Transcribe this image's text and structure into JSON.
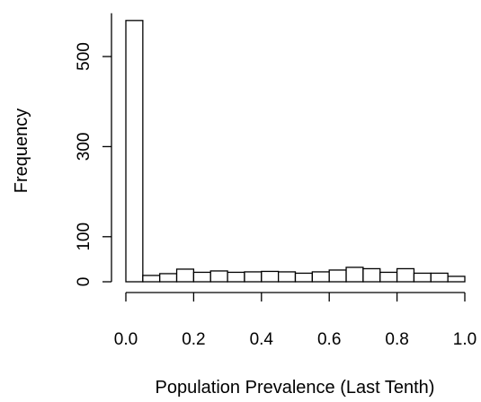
{
  "chart_data": {
    "type": "bar",
    "title": "",
    "xlabel": "Population Prevalence (Last Tenth)",
    "ylabel": "Frequency",
    "xlim": [
      0.0,
      1.0
    ],
    "ylim": [
      0,
      600
    ],
    "x_ticks": [
      "0.0",
      "0.2",
      "0.4",
      "0.6",
      "0.8",
      "1.0"
    ],
    "y_ticks": [
      "0",
      "100",
      "300",
      "500"
    ],
    "bin_width": 0.05,
    "bin_edges": [
      0.0,
      0.05,
      0.1,
      0.15,
      0.2,
      0.25,
      0.3,
      0.35,
      0.4,
      0.45,
      0.5,
      0.55,
      0.6,
      0.65,
      0.7,
      0.75,
      0.8,
      0.85,
      0.9,
      0.95,
      1.0
    ],
    "values": [
      580,
      14,
      18,
      28,
      21,
      24,
      21,
      22,
      23,
      22,
      19,
      22,
      26,
      32,
      29,
      21,
      29,
      19,
      19,
      12
    ],
    "grid": false,
    "legend": "none",
    "bar_fill": "#ffffff",
    "bar_stroke": "#000000"
  }
}
